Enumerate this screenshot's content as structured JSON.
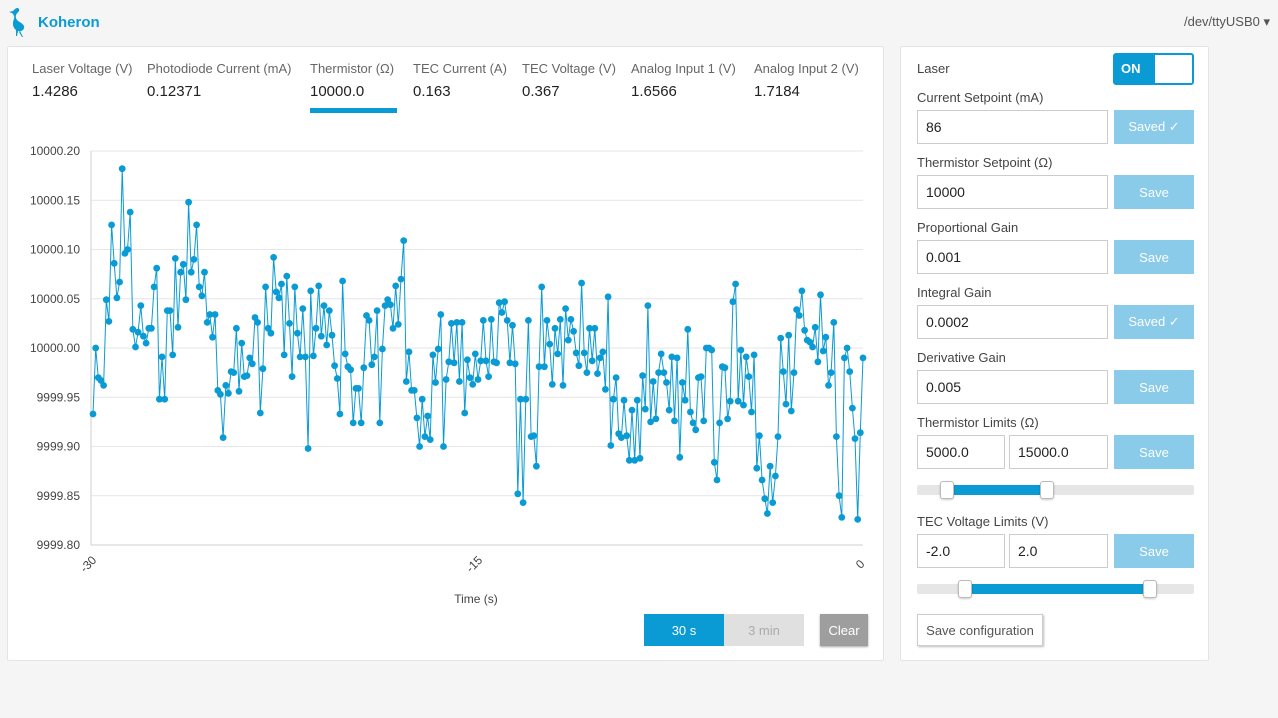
{
  "header": {
    "brand": "Koheron",
    "device": "/dev/ttyUSB0 ▾"
  },
  "tabs": [
    {
      "label": "Laser Voltage (V)",
      "value": "1.4286"
    },
    {
      "label": "Photodiode Current (mA)",
      "value": "0.12371"
    },
    {
      "label": "Thermistor (Ω)",
      "value": "10000.0"
    },
    {
      "label": "TEC Current (A)",
      "value": "0.163"
    },
    {
      "label": "TEC Voltage (V)",
      "value": "0.367"
    },
    {
      "label": "Analog Input 1 (V)",
      "value": "1.6566"
    },
    {
      "label": "Analog Input 2 (V)",
      "value": "1.7184"
    }
  ],
  "chart_data": {
    "type": "line",
    "xlabel": "Time (s)",
    "xlim": [
      -30,
      0
    ],
    "xticks": [
      "-30",
      "-15",
      "0"
    ],
    "ylim": [
      9999.8,
      10000.2
    ],
    "yticks": [
      "9999.80",
      "9999.85",
      "9999.90",
      "9999.95",
      "10000.00",
      "10000.05",
      "10000.10",
      "10000.15",
      "10000.20"
    ],
    "grid": true,
    "series_color": "#0a9bd4",
    "values": [
      9999.933,
      10000.0,
      9999.97,
      9999.967,
      9999.962,
      10000.049,
      10000.027,
      10000.125,
      10000.086,
      10000.051,
      10000.067,
      10000.182,
      10000.096,
      10000.1,
      10000.138,
      10000.019,
      10000.001,
      10000.016,
      10000.043,
      10000.012,
      10000.005,
      10000.02,
      10000.02,
      10000.062,
      10000.081,
      9999.948,
      9999.991,
      9999.948,
      10000.038,
      10000.038,
      9999.993,
      10000.091,
      10000.021,
      10000.077,
      10000.085,
      10000.049,
      10000.148,
      10000.077,
      10000.09,
      10000.125,
      10000.062,
      10000.053,
      10000.077,
      10000.026,
      10000.034,
      10000.011,
      10000.034,
      9999.957,
      9999.953,
      9999.909,
      9999.962,
      9999.954,
      9999.976,
      9999.975,
      10000.02,
      9999.956,
      10000.005,
      9999.971,
      9999.972,
      9999.99,
      9999.984,
      10000.031,
      10000.026,
      9999.934,
      9999.979,
      10000.062,
      10000.02,
      10000.015,
      10000.092,
      10000.057,
      10000.051,
      10000.065,
      9999.993,
      10000.073,
      10000.025,
      9999.971,
      10000.062,
      10000.015,
      9999.991,
      10000.04,
      9999.991,
      9999.898,
      10000.058,
      9999.992,
      10000.02,
      10000.063,
      10000.012,
      10000.043,
      10000.003,
      10000.038,
      10000.013,
      9999.982,
      9999.969,
      9999.933,
      10000.068,
      9999.994,
      9999.981,
      9999.978,
      9999.924,
      9999.959,
      9999.959,
      9999.924,
      9999.98,
      10000.033,
      10000.028,
      9999.983,
      9999.991,
      10000.038,
      9999.924,
      9999.999,
      10000.043,
      10000.049,
      10000.044,
      10000.02,
      10000.063,
      10000.024,
      10000.07,
      10000.109,
      9999.966,
      9999.996,
      9999.957,
      9999.957,
      9999.929,
      9999.9,
      9999.948,
      9999.91,
      9999.931,
      9999.907,
      9999.993,
      9999.965,
      9999.999,
      10000.034,
      9999.9,
      9999.968,
      9999.986,
      10000.025,
      9999.985,
      10000.026,
      9999.966,
      10000.026,
      9999.934,
      9999.988,
      9999.97,
      9999.963,
      9999.994,
      9999.968,
      9999.987,
      10000.028,
      9999.987,
      9999.971,
      10000.029,
      9999.986,
      9999.985,
      10000.046,
      10000.036,
      10000.047,
      10000.028,
      9999.985,
      10000.023,
      9999.984,
      9999.852,
      9999.948,
      9999.843,
      9999.948,
      10000.028,
      9999.91,
      9999.911,
      9999.88,
      9999.981,
      10000.062,
      9999.981,
      10000.028,
      10000.004,
      9999.963,
      10000.02,
      9999.994,
      10000.029,
      9999.962,
      10000.04,
      10000.008,
      10000.029,
      10000.017,
      9999.995,
      9999.982,
      10000.066,
      9999.995,
      9999.975,
      10000.02,
      9999.987,
      10000.02,
      9999.974,
      9999.99,
      9999.996,
      9999.958,
      10000.052,
      9999.901,
      9999.948,
      9999.97,
      9999.913,
      9999.909,
      9999.947,
      9999.911,
      9999.886,
      9999.937,
      9999.886,
      9999.947,
      9999.888,
      9999.972,
      9999.938,
      10000.043,
      9999.925,
      9999.966,
      9999.928,
      9999.975,
      9999.994,
      9999.975,
      9999.965,
      9999.937,
      9999.991,
      9999.926,
      9999.99,
      9999.889,
      9999.965,
      9999.947,
      10000.019,
      9999.935,
      9999.924,
      9999.917,
      9999.97,
      9999.971,
      9999.926,
      10000.0,
      10000.0,
      9999.998,
      9999.884,
      9999.866,
      9999.924,
      9999.981,
      9999.98,
      9999.928,
      9999.946,
      10000.047,
      10000.065,
      9999.946,
      9999.998,
      9999.942,
      9999.991,
      9999.971,
      9999.935,
      9999.993,
      9999.878,
      9999.911,
      9999.866,
      9999.847,
      9999.832,
      9999.88,
      9999.843,
      9999.87,
      9999.91,
      10000.01,
      9999.976,
      9999.943,
      10000.013,
      9999.936,
      9999.975,
      10000.039,
      10000.033,
      10000.058,
      10000.018,
      10000.008,
      10000.006,
      10000.001,
      10000.021,
      9999.986,
      10000.054,
      9999.997,
      10000.011,
      9999.962,
      9999.975,
      10000.026,
      9999.91,
      9999.85,
      9999.828,
      9999.99,
      10000.0,
      9999.976,
      9999.939,
      9999.908,
      9999.826,
      9999.914,
      9999.99
    ]
  },
  "range_buttons": {
    "thirty": "30 s",
    "three": "3 min"
  },
  "clear_label": "Clear",
  "panel": {
    "laser_label": "Laser",
    "laser_state": "ON",
    "current_setpoint": {
      "label": "Current Setpoint (mA)",
      "value": "86",
      "button": "Saved ✓"
    },
    "thermistor_setpoint": {
      "label": "Thermistor Setpoint (Ω)",
      "value": "10000",
      "button": "Save"
    },
    "proportional_gain": {
      "label": "Proportional Gain",
      "value": "0.001",
      "button": "Save"
    },
    "integral_gain": {
      "label": "Integral Gain",
      "value": "0.0002",
      "button": "Saved ✓"
    },
    "derivative_gain": {
      "label": "Derivative Gain",
      "value": "0.005",
      "button": "Save"
    },
    "thermistor_limits": {
      "label": "Thermistor Limits (Ω)",
      "min": "5000.0",
      "max": "15000.0",
      "button": "Save",
      "range": [
        0.11,
        0.47
      ]
    },
    "tec_voltage_limits": {
      "label": "TEC Voltage Limits (V)",
      "min": "-2.0",
      "max": "2.0",
      "button": "Save",
      "range": [
        0.175,
        0.84
      ]
    },
    "save_config": "Save configuration"
  }
}
